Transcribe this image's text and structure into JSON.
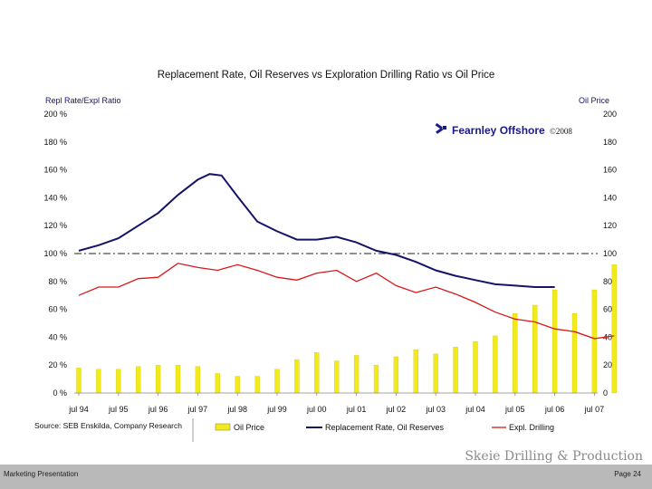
{
  "chart_data": {
    "type": "bar+line",
    "title": "Replacement Rate, Oil Reserves vs Exploration Drilling Ratio vs Oil Price",
    "left_axis_label": "Repl Rate/Expl Ratio",
    "right_axis_label": "Oil Price",
    "left_ylim": [
      0,
      200
    ],
    "right_ylim": [
      0,
      200
    ],
    "left_ticks": [
      "0 %",
      "20 %",
      "40 %",
      "60 %",
      "80 %",
      "100 %",
      "120 %",
      "140 %",
      "160 %",
      "180 %",
      "200 %"
    ],
    "right_ticks": [
      "0",
      "20",
      "40",
      "60",
      "80",
      "100",
      "120",
      "140",
      "160",
      "180",
      "200"
    ],
    "x_labels": [
      "jul 94",
      "jul 95",
      "jul 96",
      "jul 97",
      "jul 98",
      "jul 99",
      "jul 00",
      "jul 01",
      "jul 02",
      "jul 03",
      "jul 04",
      "jul 05",
      "jul 06",
      "jul 07"
    ],
    "reference_line": 100,
    "oil_price": {
      "name": "Oil Price",
      "color": "#f2ea1a",
      "values": [
        18,
        17,
        17,
        19,
        20,
        20,
        19,
        14,
        12,
        12,
        17,
        24,
        29,
        23,
        27,
        20,
        26,
        31,
        28,
        33,
        37,
        41,
        57,
        63,
        74,
        57,
        74,
        92
      ]
    },
    "replacement_rate": {
      "name": "Replacement Rate, Oil Reserves",
      "color": "#14146b",
      "t": [
        0,
        0.5,
        1,
        1.5,
        2,
        2.5,
        3,
        3.3,
        3.6,
        4,
        4.5,
        5,
        5.5,
        6,
        6.5,
        7,
        7.5,
        8,
        8.5,
        9,
        9.5,
        10,
        10.5,
        11,
        11.5,
        12
      ],
      "values": [
        102,
        106,
        111,
        120,
        129,
        142,
        153,
        157,
        156,
        141,
        123,
        116,
        110,
        110,
        112,
        108,
        102,
        99,
        94,
        88,
        84,
        81,
        78,
        77,
        76,
        76
      ]
    },
    "expl_drilling": {
      "name": "Expl. Drilling",
      "color": "#d81818",
      "t": [
        0,
        0.5,
        1,
        1.5,
        2,
        2.5,
        3,
        3.5,
        4,
        4.5,
        5,
        5.5,
        6,
        6.5,
        7,
        7.5,
        8,
        8.5,
        9,
        9.5,
        10,
        10.5,
        11,
        11.5,
        12,
        12.5,
        13,
        13.5
      ],
      "values": [
        70,
        76,
        76,
        82,
        83,
        93,
        90,
        88,
        92,
        88,
        83,
        81,
        86,
        88,
        80,
        86,
        77,
        72,
        76,
        71,
        65,
        58,
        53,
        51,
        46,
        44,
        39,
        41
      ]
    },
    "legend": [
      "Oil Price",
      "Replacement Rate, Oil Reserves",
      "Expl. Drilling"
    ],
    "source": "Source: SEB Enskilda, Company Research",
    "brand": "Fearnley Offshore",
    "copyright": "©2008"
  },
  "footer": {
    "left": "Marketing Presentation",
    "right": "Page 24",
    "brand": "Skeie Drilling & Production"
  }
}
